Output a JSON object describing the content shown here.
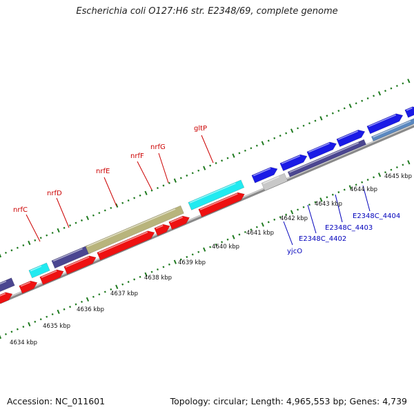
{
  "title": "Escherichia coli O127:H6 str. E2348/69, complete genome",
  "footer": {
    "accession": "Accession: NC_011601",
    "topology": "Topology: circular; Length: 4,965,553 bp; Genes: 4,739"
  },
  "colors": {
    "red": "#ee1111",
    "navy": "#4b4690",
    "cyan": "#21eaf0",
    "olive": "#b8b47c",
    "blue": "#1a1ae6",
    "grey": "#c8c8c8",
    "steel": "#5a88c0",
    "tick": "#1f7a1f",
    "backbone": "#8a8a8a",
    "red_label": "#cc0000",
    "blue_label": "#0000bb"
  },
  "scale_labels": [
    "4634 kbp",
    "4635 kbp",
    "4636 kbp",
    "4637 kbp",
    "4638 kbp",
    "4639 kbp",
    "4640 kbp",
    "4641 kbp",
    "4642 kbp",
    "4643 kbp",
    "4644 kbp",
    "4645 kbp"
  ],
  "red_gene_labels": [
    "nrfC",
    "nrfD",
    "nrfE",
    "nrfF",
    "nrfG",
    "gltP"
  ],
  "blue_gene_labels": [
    "yjcO",
    "E2348C_4402",
    "E2348C_4403",
    "E2348C_4404"
  ]
}
